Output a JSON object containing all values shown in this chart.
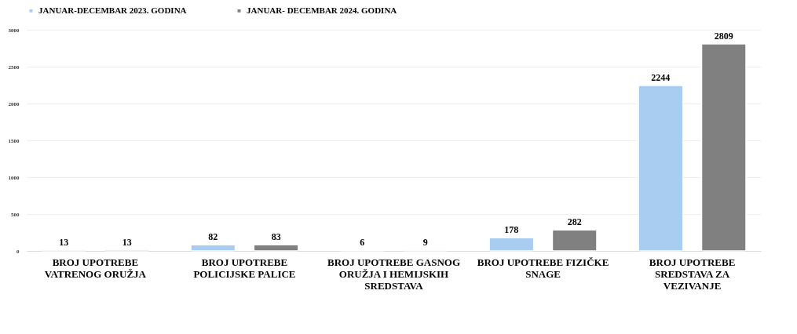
{
  "chart_data": {
    "type": "bar",
    "categories": [
      "BROJ UPOTREBE VATRENOG ORUŽJA",
      "BROJ UPOTREBE POLICIJSKE PALICE",
      "BROJ UPOTREBE GASNOG ORUŽJA I HEMIJSKIH SREDSTAVA",
      "BROJ UPOTREBE FIZIČKE SNAGE",
      "BROJ UPOTREBE SREDSTAVA ZA VEZIVANJE"
    ],
    "series": [
      {
        "name": "JANUAR-DECEMBAR 2023. GODINA",
        "color": "#a9cdf0",
        "values": [
          13,
          82,
          6,
          178,
          2244
        ]
      },
      {
        "name": "JANUAR- DECEMBAR 2024. GODINA",
        "color": "#808080",
        "values": [
          13,
          83,
          9,
          282,
          2809
        ]
      }
    ],
    "ylim": [
      0,
      3000
    ],
    "yticks": [
      0,
      500,
      1000,
      1500,
      2000,
      2500,
      3000
    ],
    "grid": "y",
    "legend": "top",
    "data_labels": true
  }
}
